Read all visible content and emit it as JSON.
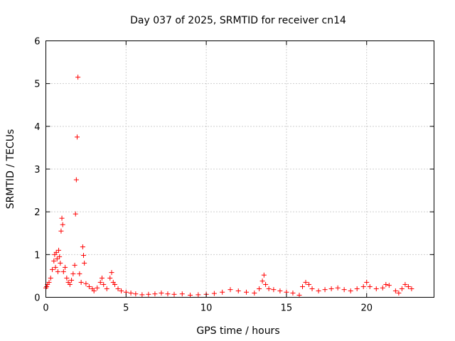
{
  "chart_data": {
    "type": "scatter",
    "title": "Day 037 of 2025, SRMTID for receiver cn14",
    "xlabel": "GPS time / hours",
    "ylabel": "SRMTID / TECUs",
    "xlim": [
      0,
      24.2
    ],
    "ylim": [
      0,
      6
    ],
    "xticks": [
      0,
      5,
      10,
      15,
      20
    ],
    "yticks": [
      0,
      1,
      2,
      3,
      4,
      5,
      6
    ],
    "grid": true,
    "marker": "+",
    "color": "#ff0000",
    "series": [
      {
        "name": "SRMTID",
        "x": [
          0.0,
          0.05,
          0.1,
          0.2,
          0.3,
          0.4,
          0.5,
          0.55,
          0.6,
          0.65,
          0.7,
          0.75,
          0.8,
          0.85,
          0.9,
          0.95,
          1.0,
          1.05,
          1.1,
          1.2,
          1.3,
          1.4,
          1.5,
          1.6,
          1.7,
          1.8,
          1.85,
          1.9,
          1.95,
          2.0,
          2.1,
          2.2,
          2.3,
          2.35,
          2.4,
          2.5,
          2.7,
          2.9,
          3.0,
          3.2,
          3.4,
          3.5,
          3.6,
          3.8,
          4.0,
          4.1,
          4.2,
          4.3,
          4.5,
          4.7,
          5.0,
          5.3,
          5.6,
          6.0,
          6.4,
          6.8,
          7.2,
          7.6,
          8.0,
          8.5,
          9.0,
          9.5,
          10.0,
          10.5,
          11.0,
          11.5,
          12.0,
          12.5,
          13.0,
          13.3,
          13.5,
          13.6,
          13.7,
          13.9,
          14.2,
          14.6,
          15.0,
          15.4,
          15.8,
          16.0,
          16.2,
          16.4,
          16.6,
          17.0,
          17.4,
          17.8,
          18.2,
          18.6,
          19.0,
          19.4,
          19.8,
          20.0,
          20.2,
          20.6,
          21.0,
          21.2,
          21.4,
          21.8,
          22.0,
          22.2,
          22.4,
          22.6,
          22.8
        ],
        "y": [
          0.22,
          0.25,
          0.3,
          0.35,
          0.45,
          0.65,
          0.85,
          1.0,
          0.7,
          1.05,
          0.9,
          0.6,
          1.1,
          0.95,
          0.8,
          1.55,
          1.85,
          1.7,
          0.6,
          0.7,
          0.45,
          0.35,
          0.3,
          0.4,
          0.55,
          0.75,
          1.95,
          2.75,
          3.75,
          5.15,
          0.55,
          0.35,
          1.18,
          0.98,
          0.8,
          0.32,
          0.25,
          0.2,
          0.15,
          0.22,
          0.35,
          0.45,
          0.3,
          0.2,
          0.45,
          0.58,
          0.35,
          0.3,
          0.2,
          0.15,
          0.12,
          0.1,
          0.08,
          0.06,
          0.07,
          0.08,
          0.1,
          0.08,
          0.07,
          0.08,
          0.05,
          0.06,
          0.07,
          0.09,
          0.12,
          0.18,
          0.15,
          0.12,
          0.1,
          0.2,
          0.38,
          0.52,
          0.3,
          0.2,
          0.18,
          0.15,
          0.12,
          0.1,
          0.05,
          0.25,
          0.35,
          0.3,
          0.2,
          0.15,
          0.18,
          0.2,
          0.22,
          0.18,
          0.15,
          0.2,
          0.25,
          0.35,
          0.25,
          0.2,
          0.22,
          0.3,
          0.28,
          0.15,
          0.1,
          0.2,
          0.3,
          0.25,
          0.2
        ]
      }
    ]
  }
}
